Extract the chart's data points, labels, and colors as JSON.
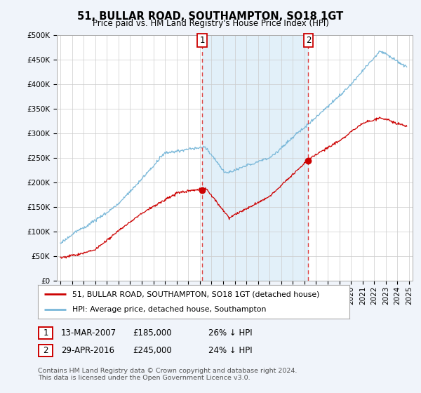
{
  "title": "51, BULLAR ROAD, SOUTHAMPTON, SO18 1GT",
  "subtitle": "Price paid vs. HM Land Registry's House Price Index (HPI)",
  "ylabel_ticks": [
    "£0",
    "£50K",
    "£100K",
    "£150K",
    "£200K",
    "£250K",
    "£300K",
    "£350K",
    "£400K",
    "£450K",
    "£500K"
  ],
  "ytick_vals": [
    0,
    50000,
    100000,
    150000,
    200000,
    250000,
    300000,
    350000,
    400000,
    450000,
    500000
  ],
  "ylim": [
    0,
    500000
  ],
  "xlim_start": 1994.7,
  "xlim_end": 2025.3,
  "hpi_color": "#7ab8d9",
  "hpi_fill_color": "#ddeef8",
  "price_color": "#cc0000",
  "vline_color": "#dd4444",
  "marker1_x": 2007.2,
  "marker1_y": 185000,
  "marker2_x": 2016.33,
  "marker2_y": 245000,
  "legend_line1": "51, BULLAR ROAD, SOUTHAMPTON, SO18 1GT (detached house)",
  "legend_line2": "HPI: Average price, detached house, Southampton",
  "table_row1": [
    "1",
    "13-MAR-2007",
    "£185,000",
    "26% ↓ HPI"
  ],
  "table_row2": [
    "2",
    "29-APR-2016",
    "£245,000",
    "24% ↓ HPI"
  ],
  "footnote": "Contains HM Land Registry data © Crown copyright and database right 2024.\nThis data is licensed under the Open Government Licence v3.0.",
  "background_color": "#f0f4fa",
  "plot_bg_color": "#ffffff"
}
